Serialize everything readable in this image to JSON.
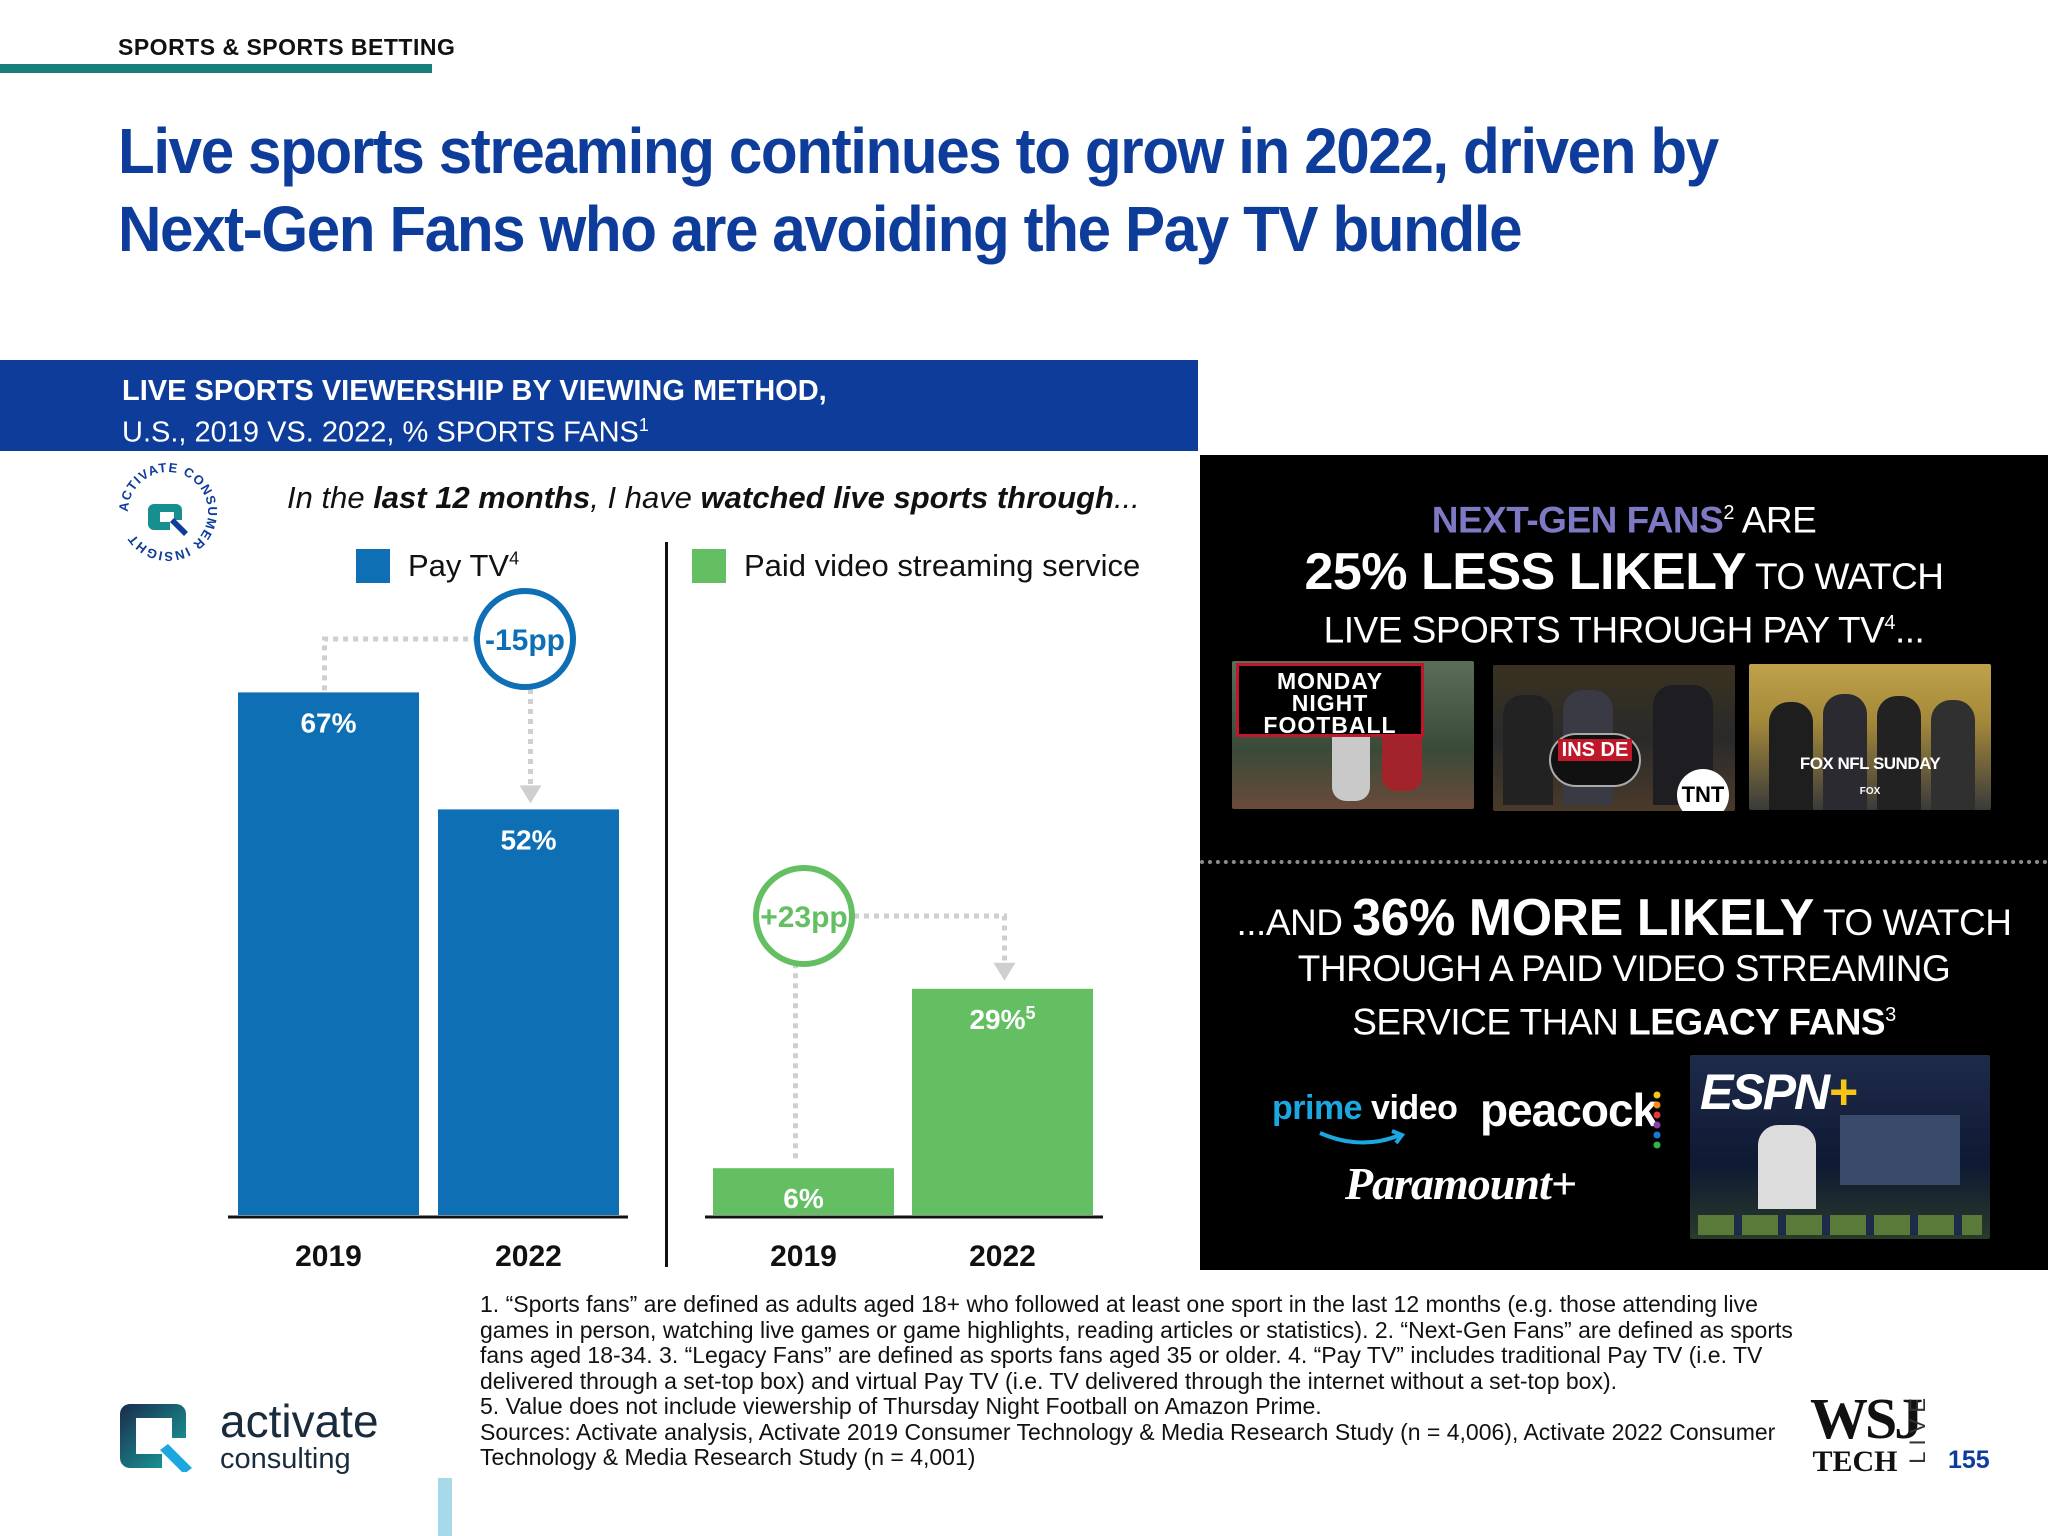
{
  "section": {
    "label": "SPORTS & SPORTS BETTING"
  },
  "page": {
    "title": "Live sports streaming continues to grow in 2022, driven by Next-Gen Fans who are avoiding the Pay TV bundle",
    "number": "155"
  },
  "chart_header": {
    "line1": "LIVE SPORTS VIEWERSHIP BY VIEWING METHOD,",
    "line2": "U.S., 2019 VS. 2022, % SPORTS FANS",
    "line2_sup": "1"
  },
  "stamp": {
    "text": "ACTIVATE CONSUMER INSIGHT"
  },
  "prompt": {
    "p1": "In the ",
    "b1": "last 12 months",
    "p2": ", I have ",
    "b2": "watched live sports through",
    "p3": "..."
  },
  "chart_data": {
    "type": "bar",
    "categories": [
      "2019",
      "2022"
    ],
    "series": [
      {
        "name": "Pay TV",
        "name_sup": "4",
        "values": [
          67,
          52
        ],
        "color": "#0f6fb4",
        "labels": [
          "67%",
          "52%"
        ],
        "label_sups": [
          "",
          ""
        ]
      },
      {
        "name": "Paid video streaming service",
        "name_sup": "",
        "values": [
          6,
          29
        ],
        "color": "#63bf62",
        "labels": [
          "6%",
          "29%"
        ],
        "label_sups": [
          "",
          "5"
        ]
      }
    ],
    "ylim": [
      0,
      100
    ],
    "annotations": [
      {
        "series": "Pay TV",
        "text": "-15pp",
        "color": "#0f6fb4"
      },
      {
        "series": "Paid video streaming service",
        "text": "+23pp",
        "color": "#63bf62"
      }
    ],
    "title": "",
    "xlabel": "",
    "ylabel": ""
  },
  "right_panel": {
    "t1_purple": "NEXT-GEN FANS",
    "t1_sup": "2",
    "t1_rest": " ARE",
    "t2_big": "25% LESS LIKELY",
    "t2_rest": " TO WATCH",
    "t3": "LIVE SPORTS THROUGH PAY TV",
    "t3_sup": "4",
    "t3_end": "...",
    "b1_pre": "...AND ",
    "b1_big": "36% MORE LIKELY",
    "b1_rest": " TO WATCH",
    "b2": "THROUGH A PAID VIDEO STREAMING",
    "b3_pre": "SERVICE THAN ",
    "b3_bold": "LEGACY FANS",
    "b3_sup": "3",
    "mnf": [
      "MONDAY",
      "NIGHT",
      "FOOTBALL"
    ],
    "inside": "INS DE",
    "tnt": "TNT",
    "fox": "FOX NFL SUNDAY",
    "fox_small": "FOX",
    "prime1": "prime",
    "prime2": "video",
    "peacock": "peacock",
    "espn": "ESPN",
    "espn_plus": "+",
    "paramount": "Paramount+"
  },
  "footnotes": {
    "f1": "1. “Sports fans” are defined as adults aged 18+ who followed at least one sport in the last 12 months (e.g. those attending live games in person, watching live games or game highlights, reading articles or statistics).  2. “Next-Gen Fans” are defined as sports fans aged 18-34.  3. “Legacy Fans” are defined as sports fans aged 35 or older.  4. “Pay TV” includes traditional Pay TV (i.e. TV delivered through a set-top box) and virtual Pay TV (i.e. TV delivered through the internet without a set-top box).",
    "f2": "5. Value does not include viewership of Thursday Night Football on Amazon Prime.",
    "sources": "Sources: Activate analysis, Activate 2019 Consumer Technology & Media Research Study (n = 4,006), Activate 2022 Consumer Technology & Media Research Study (n = 4,001)"
  },
  "brand": {
    "name1": "activate",
    "name2": "consulting"
  },
  "wsj": {
    "line1": "WSJ",
    "line2": "TECH",
    "live": "LIVE"
  }
}
